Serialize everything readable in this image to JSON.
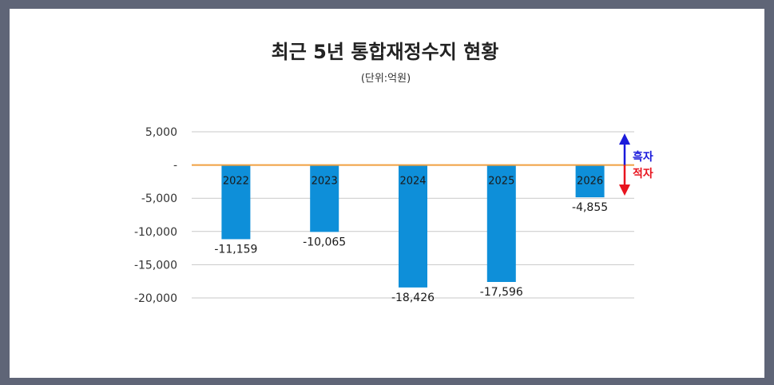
{
  "chart_data": {
    "type": "bar",
    "title": "최근 5년 통합재정수지 현황",
    "subtitle": "(단위:억원)",
    "categories": [
      "2022",
      "2023",
      "2024",
      "2025",
      "2026"
    ],
    "values": [
      -11159,
      -10065,
      -18426,
      -17596,
      -4855
    ],
    "value_labels": [
      "-11,159",
      "-10,065",
      "-18,426",
      "-17,596",
      "-4,855"
    ],
    "ylim": [
      -20000,
      5000
    ],
    "yticks": [
      5000,
      0,
      -5000,
      -10000,
      -15000,
      -20000
    ],
    "ytick_labels": [
      "5,000",
      "-",
      "-5,000",
      "-10,000",
      "-15,000",
      "-20,000"
    ],
    "grid": true,
    "legend": {
      "surplus_label": "흑자",
      "deficit_label": "적자",
      "surplus_color": "#1a1adb",
      "deficit_color": "#e8141e"
    },
    "colors": {
      "bar": "#0e8fd9",
      "zero_line": "#f0a040",
      "grid": "#c8c8c8"
    }
  }
}
